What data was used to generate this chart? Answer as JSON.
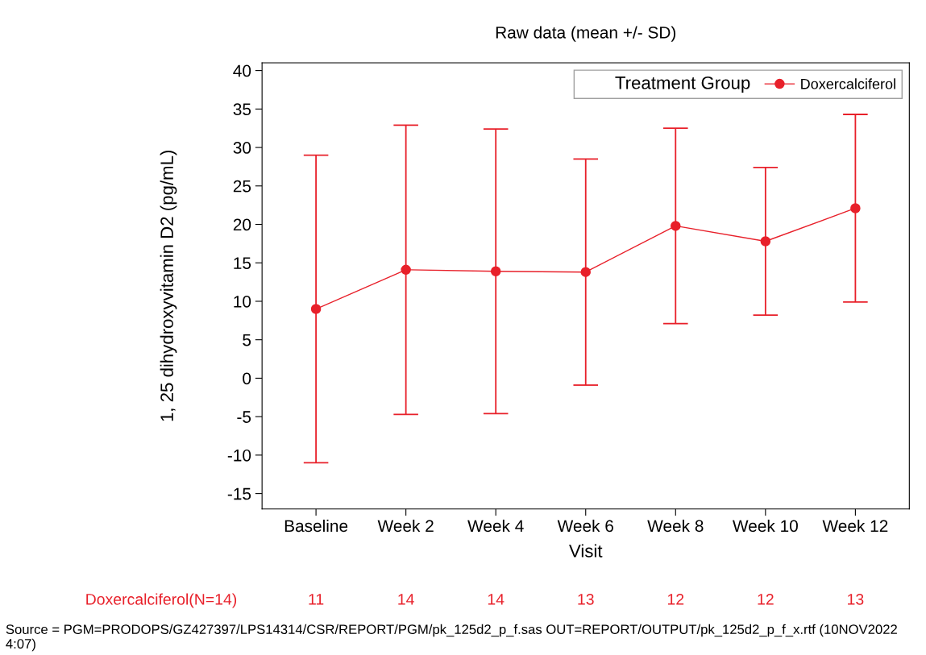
{
  "chart_data": {
    "type": "line",
    "title": "Raw data (mean +/- SD)",
    "xlabel": "Visit",
    "ylabel": "1, 25 dihydroxyvitamin D2 (pg/mL)",
    "legend_title": "Treatment Group",
    "categories": [
      "Baseline",
      "Week 2",
      "Week 4",
      "Week 6",
      "Week 8",
      "Week 10",
      "Week 12"
    ],
    "series": [
      {
        "name": "Doxercalciferol",
        "color": "#e8202a",
        "values": [
          9.0,
          14.1,
          13.9,
          13.8,
          19.8,
          17.8,
          22.1
        ],
        "errors": [
          20.0,
          18.8,
          18.5,
          14.7,
          12.7,
          9.6,
          12.2
        ]
      }
    ],
    "ylim": [
      -17,
      41
    ],
    "yticks": [
      -15,
      -10,
      -5,
      0,
      5,
      10,
      15,
      20,
      25,
      30,
      35,
      40
    ],
    "grid": false,
    "legend": "top right",
    "marker": "circle",
    "line_style": "solid",
    "annotations": [
      "Doxercalciferol(N=14)",
      "11",
      "14",
      "14",
      "13",
      "12",
      "12",
      "13",
      "Source = PGM=PRODOPS/GZ427397/LPS14314/CSR/REPORT/PGM/pk_125d2_p_f.sas OUT=REPORT/OUTPUT/pk_125d2_p_f_x.rtf (10NOV2022 4:07)"
    ]
  }
}
